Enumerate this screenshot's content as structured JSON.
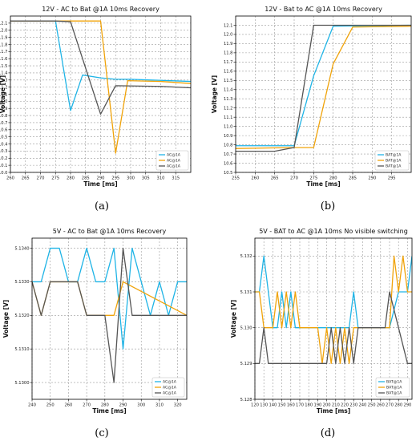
{
  "colors": {
    "blue": "#1fb4e6",
    "orange": "#f0a30a",
    "gray": "#555555",
    "grid": "#9a9a9a"
  },
  "panel_labels": [
    "(a)",
    "(b)",
    "(c)",
    "(d)"
  ],
  "chart_data": [
    {
      "type": "line",
      "title": "12V - AC to Bat @1A 10ms Recovery",
      "xlabel": "Time [ms]",
      "ylabel": "Voltage [V]",
      "xlim": [
        260,
        320
      ],
      "ylim": [
        10.0,
        12.2
      ],
      "xticks": [
        260,
        265,
        270,
        275,
        280,
        285,
        290,
        295,
        300,
        305,
        310,
        315
      ],
      "yticks": [
        10.0,
        10.1,
        10.2,
        10.3,
        10.4,
        10.5,
        10.6,
        10.7,
        10.8,
        10.9,
        11.0,
        11.1,
        11.2,
        11.3,
        11.4,
        11.5,
        11.6,
        11.7,
        11.8,
        11.9,
        12.0,
        12.1
      ],
      "ytick_decimals": 1,
      "grid": true,
      "legend_placement": "bottom-right",
      "series": [
        {
          "name": "AC@1A",
          "color": "blue",
          "x": [
            260,
            275,
            280,
            284,
            290,
            295,
            300,
            320
          ],
          "y": [
            12.13,
            12.13,
            10.87,
            11.37,
            11.33,
            11.31,
            11.31,
            11.28
          ]
        },
        {
          "name": "AC@1A",
          "color": "orange",
          "x": [
            260,
            275,
            280,
            290,
            295,
            299,
            310,
            320
          ],
          "y": [
            12.13,
            12.13,
            12.13,
            12.13,
            10.27,
            11.29,
            11.28,
            11.25
          ]
        },
        {
          "name": "AC@1A",
          "color": "gray",
          "x": [
            260,
            275,
            280,
            290,
            295,
            310,
            320
          ],
          "y": [
            12.13,
            12.13,
            12.12,
            10.82,
            11.22,
            11.21,
            11.19
          ]
        }
      ]
    },
    {
      "type": "line",
      "title": "12V - Bat to AC @1A 10ms Recovery",
      "xlabel": "Time [ms]",
      "ylabel": "Voltage [V]",
      "xlim": [
        255,
        300
      ],
      "ylim": [
        10.5,
        12.2
      ],
      "xticks": [
        255,
        260,
        265,
        270,
        275,
        280,
        285,
        290,
        295
      ],
      "yticks": [
        10.5,
        10.6,
        10.7,
        10.8,
        10.9,
        11.0,
        11.1,
        11.2,
        11.3,
        11.4,
        11.5,
        11.6,
        11.7,
        11.8,
        11.9,
        12.0,
        12.1
      ],
      "ytick_decimals": 1,
      "grid": true,
      "legend_placement": "bottom-right",
      "series": [
        {
          "name": "BAT@1A",
          "color": "blue",
          "x": [
            255,
            270,
            275,
            280,
            300
          ],
          "y": [
            10.79,
            10.79,
            11.55,
            12.09,
            12.1
          ]
        },
        {
          "name": "BAT@1A",
          "color": "orange",
          "x": [
            255,
            270,
            275,
            280,
            285,
            300
          ],
          "y": [
            10.76,
            10.77,
            10.77,
            11.68,
            12.08,
            12.09
          ]
        },
        {
          "name": "BAT@1A",
          "color": "gray",
          "x": [
            255,
            265,
            270,
            275,
            300
          ],
          "y": [
            10.73,
            10.73,
            10.77,
            12.1,
            12.1
          ]
        }
      ]
    },
    {
      "type": "line",
      "title": "5V - AC to Bat @1A 10ms Recovery",
      "xlabel": "Time [ms]",
      "ylabel": "Voltage [V]",
      "xlim": [
        240,
        325
      ],
      "ylim": [
        5.1295,
        5.1343
      ],
      "xticks": [
        240,
        250,
        260,
        270,
        280,
        290,
        300,
        310,
        320
      ],
      "yticks": [
        5.13,
        5.131,
        5.132,
        5.133,
        5.134
      ],
      "ytick_decimals": 4,
      "grid": true,
      "legend_placement": "bottom-right",
      "series": [
        {
          "name": "AC@1A",
          "color": "blue",
          "x": [
            240,
            245,
            250,
            255,
            260,
            265,
            270,
            275,
            280,
            285,
            290,
            295,
            300,
            305,
            310,
            315,
            320,
            325
          ],
          "y": [
            5.133,
            5.133,
            5.134,
            5.134,
            5.133,
            5.133,
            5.134,
            5.133,
            5.133,
            5.134,
            5.131,
            5.134,
            5.133,
            5.132,
            5.133,
            5.132,
            5.133,
            5.133
          ]
        },
        {
          "name": "AC@1A",
          "color": "orange",
          "x": [
            240,
            245,
            250,
            265,
            270,
            285,
            290,
            325
          ],
          "y": [
            5.133,
            5.132,
            5.133,
            5.133,
            5.132,
            5.132,
            5.133,
            5.132
          ]
        },
        {
          "name": "AC@1A",
          "color": "gray",
          "x": [
            240,
            245,
            250,
            265,
            270,
            280,
            285,
            290,
            295,
            325
          ],
          "y": [
            5.133,
            5.132,
            5.133,
            5.133,
            5.132,
            5.132,
            5.13,
            5.134,
            5.132,
            5.132
          ]
        }
      ]
    },
    {
      "type": "line",
      "title": "5V - BAT to AC @1A 10ms No visible switching",
      "xlabel": "Time [ms]",
      "ylabel": "Voltage [V]",
      "xlim": [
        120,
        295
      ],
      "ylim": [
        5.128,
        5.1325
      ],
      "xticks": [
        120,
        130,
        140,
        150,
        160,
        170,
        180,
        190,
        200,
        210,
        220,
        230,
        240,
        250,
        260,
        270,
        280,
        290
      ],
      "yticks": [
        5.128,
        5.129,
        5.13,
        5.131,
        5.132
      ],
      "ytick_decimals": 3,
      "grid": true,
      "legend_placement": "bottom-right",
      "series": [
        {
          "name": "BAT@1A",
          "color": "blue",
          "x": [
            120,
            125,
            130,
            135,
            140,
            145,
            150,
            155,
            160,
            165,
            170,
            175,
            225,
            230,
            235,
            240,
            270,
            280,
            290,
            295
          ],
          "y": [
            5.131,
            5.131,
            5.132,
            5.131,
            5.13,
            5.13,
            5.131,
            5.13,
            5.131,
            5.13,
            5.13,
            5.13,
            5.13,
            5.131,
            5.13,
            5.13,
            5.13,
            5.131,
            5.131,
            5.132
          ]
        },
        {
          "name": "BAT@1A",
          "color": "orange",
          "x": [
            120,
            125,
            130,
            140,
            145,
            150,
            155,
            160,
            165,
            170,
            175,
            180,
            190,
            195,
            200,
            205,
            210,
            215,
            220,
            225,
            230,
            235,
            240,
            270,
            275,
            280,
            285,
            290,
            295
          ],
          "y": [
            5.131,
            5.131,
            5.13,
            5.13,
            5.131,
            5.13,
            5.131,
            5.13,
            5.131,
            5.13,
            5.13,
            5.13,
            5.13,
            5.129,
            5.13,
            5.129,
            5.13,
            5.129,
            5.13,
            5.129,
            5.13,
            5.13,
            5.13,
            5.13,
            5.132,
            5.131,
            5.132,
            5.131,
            5.131
          ]
        },
        {
          "name": "BAT@1A",
          "color": "gray",
          "x": [
            120,
            125,
            130,
            135,
            140,
            145,
            200,
            205,
            210,
            215,
            220,
            225,
            230,
            235,
            240,
            260,
            265,
            270,
            280,
            290,
            295
          ],
          "y": [
            5.129,
            5.129,
            5.13,
            5.129,
            5.129,
            5.129,
            5.129,
            5.13,
            5.129,
            5.13,
            5.129,
            5.13,
            5.129,
            5.13,
            5.13,
            5.13,
            5.13,
            5.131,
            5.13,
            5.129,
            5.129
          ]
        }
      ]
    }
  ]
}
